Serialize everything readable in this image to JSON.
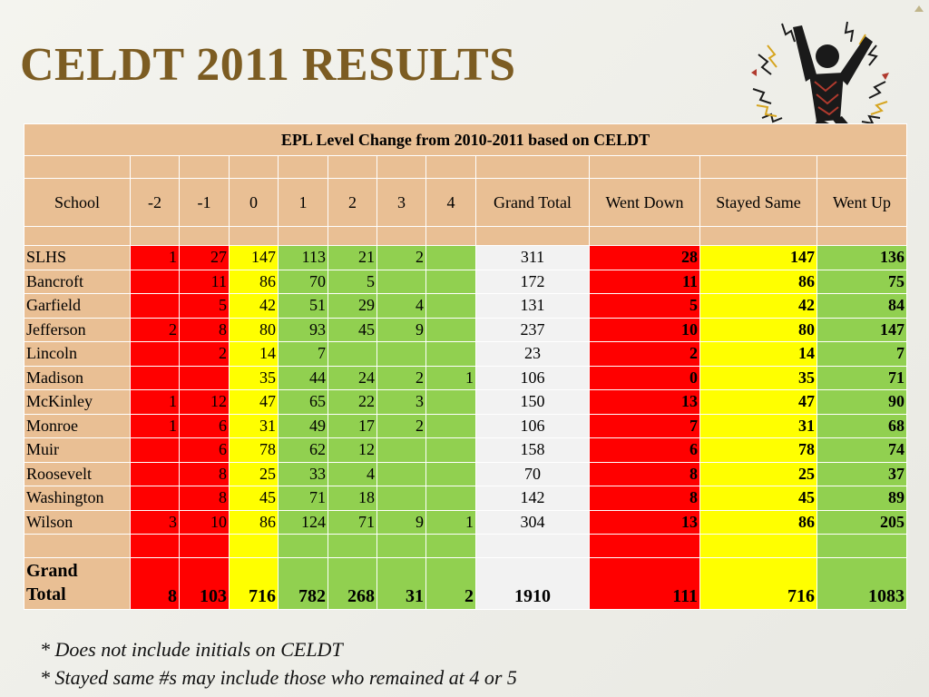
{
  "title": "CELDT 2011 RESULTS",
  "table": {
    "caption": "EPL Level Change from 2010-2011 based on CELDT",
    "headers": [
      "School",
      "-2",
      "-1",
      "0",
      "1",
      "2",
      "3",
      "4",
      "Grand Total",
      "Went Down",
      "Stayed Same",
      "Went Up"
    ],
    "rows": [
      [
        "SLHS",
        "1",
        "27",
        "147",
        "113",
        "21",
        "2",
        "",
        "311",
        "28",
        "147",
        "136"
      ],
      [
        "Bancroft",
        "",
        "11",
        "86",
        "70",
        "5",
        "",
        "",
        "172",
        "11",
        "86",
        "75"
      ],
      [
        "Garfield",
        "",
        "5",
        "42",
        "51",
        "29",
        "4",
        "",
        "131",
        "5",
        "42",
        "84"
      ],
      [
        "Jefferson",
        "2",
        "8",
        "80",
        "93",
        "45",
        "9",
        "",
        "237",
        "10",
        "80",
        "147"
      ],
      [
        "Lincoln",
        "",
        "2",
        "14",
        "7",
        "",
        "",
        "",
        "23",
        "2",
        "14",
        "7"
      ],
      [
        "Madison",
        "",
        "",
        "35",
        "44",
        "24",
        "2",
        "1",
        "106",
        "0",
        "35",
        "71"
      ],
      [
        "McKinley",
        "1",
        "12",
        "47",
        "65",
        "22",
        "3",
        "",
        "150",
        "13",
        "47",
        "90"
      ],
      [
        "Monroe",
        "1",
        "6",
        "31",
        "49",
        "17",
        "2",
        "",
        "106",
        "7",
        "31",
        "68"
      ],
      [
        "Muir",
        "",
        "6",
        "78",
        "62",
        "12",
        "",
        "",
        "158",
        "6",
        "78",
        "74"
      ],
      [
        "Roosevelt",
        "",
        "8",
        "25",
        "33",
        "4",
        "",
        "",
        "70",
        "8",
        "25",
        "37"
      ],
      [
        "Washington",
        "",
        "8",
        "45",
        "71",
        "18",
        "",
        "",
        "142",
        "8",
        "45",
        "89"
      ],
      [
        "Wilson",
        "3",
        "10",
        "86",
        "124",
        "71",
        "9",
        "1",
        "304",
        "13",
        "86",
        "205"
      ]
    ],
    "total_label_1": "Grand",
    "total_label_2": "Total",
    "total": [
      "8",
      "103",
      "716",
      "782",
      "268",
      "31",
      "2",
      "1910",
      "111",
      "716",
      "1083"
    ]
  },
  "notes": [
    "* Does not include initials on CELDT",
    "* Stayed same #s may include those who remained at 4 or 5"
  ],
  "colors": {
    "title": "#7c5c22",
    "header_tan": "#e9bf94",
    "down_red": "#ff0000",
    "same_yellow": "#ffff00",
    "up_green": "#91d050"
  },
  "clipart": "jumping-person-celebration-icon"
}
